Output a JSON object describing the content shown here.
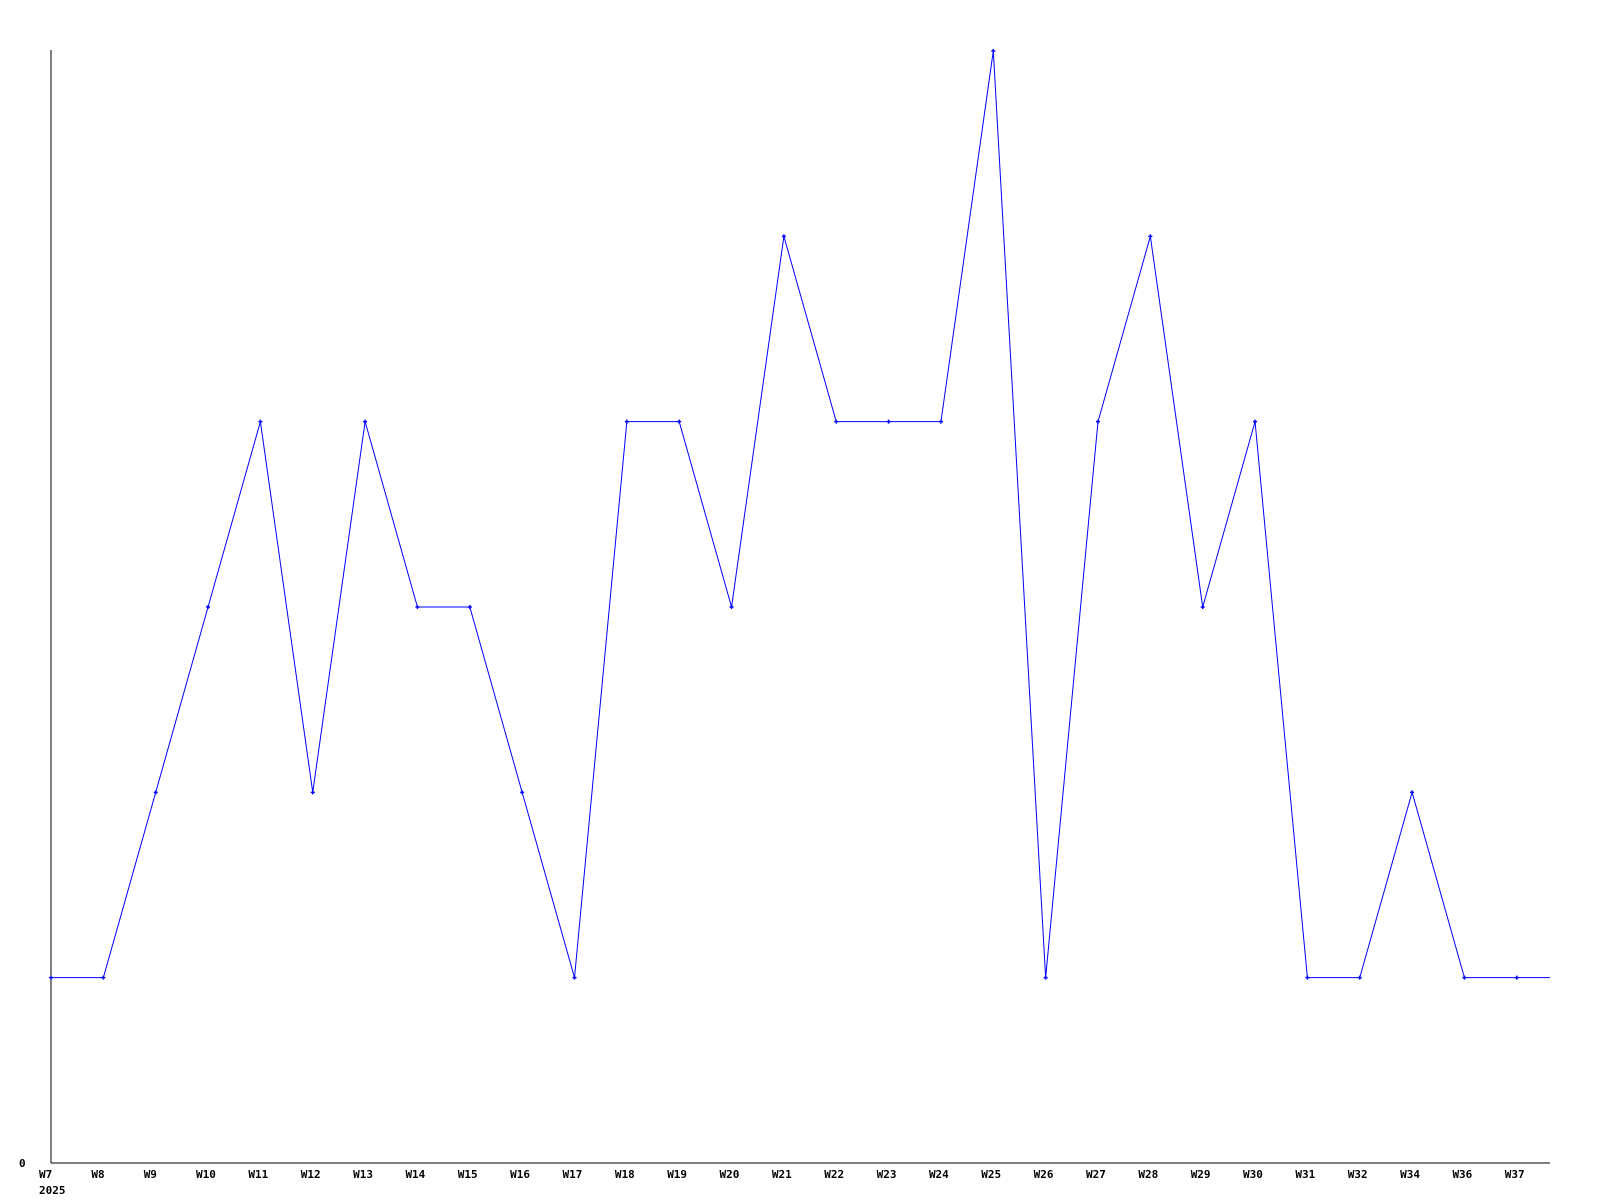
{
  "chart_data": {
    "type": "line",
    "title": "",
    "xlabel": "",
    "ylabel": "",
    "categories": [
      "W7",
      "W8",
      "W9",
      "W10",
      "W11",
      "W12",
      "W13",
      "W14",
      "W15",
      "W16",
      "W17",
      "W18",
      "W19",
      "W20",
      "W21",
      "W22",
      "W23",
      "W24",
      "W25",
      "W26",
      "W27",
      "W28",
      "W29",
      "W30",
      "W31",
      "W32",
      "W34",
      "W36",
      "W37"
    ],
    "year_label": "2025",
    "values": [
      1,
      1,
      2,
      3,
      4,
      2,
      4,
      3,
      3,
      2,
      1,
      4,
      4,
      3,
      5,
      4,
      4,
      4,
      6,
      1,
      4,
      5,
      3,
      4,
      1,
      1,
      2,
      1,
      1
    ],
    "y_tick_labels": [
      "0"
    ],
    "ylim": [
      0,
      6
    ],
    "grid": false,
    "series_color": "#0000ff",
    "axis_color": "#000000"
  }
}
